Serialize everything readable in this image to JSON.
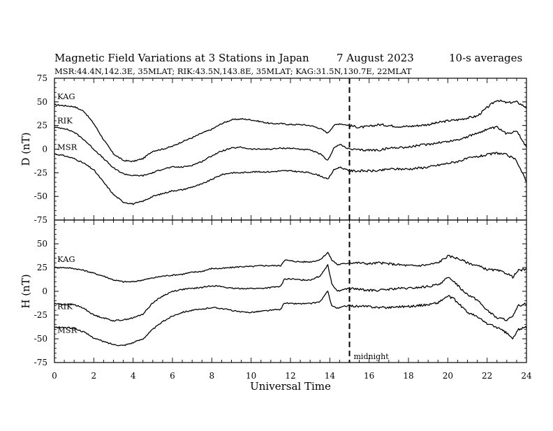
{
  "chart_data": {
    "type": "line",
    "title": "Magnetic Field Variations at 3 Stations in Japan",
    "date": "7   August   2023",
    "averaging": "10-s averages",
    "subtitle": "MSR:44.4N,142.3E, 35MLAT;  RIK:43.5N,143.8E, 35MLAT;  KAG:31.5N,130.7E, 22MLAT",
    "xlabel": "Universal Time",
    "xlim": [
      0,
      24
    ],
    "xticks": [
      "0",
      "2",
      "4",
      "6",
      "8",
      "10",
      "12",
      "14",
      "16",
      "18",
      "20",
      "22",
      "24"
    ],
    "marker": {
      "x": 15,
      "label": "midnight"
    },
    "panels": [
      {
        "ylabel": "D (nT)",
        "ylim": [
          -75,
          75
        ],
        "yticks": [
          "75",
          "50",
          "25",
          "0",
          "-25",
          "-50",
          "-75"
        ],
        "series": [
          {
            "name": "KAG",
            "x": [
              0,
              0.5,
              1,
              1.5,
              2,
              2.5,
              3,
              3.5,
              4,
              4.5,
              5,
              5.5,
              6,
              6.5,
              7,
              7.5,
              8,
              8.5,
              9,
              9.5,
              10,
              10.5,
              11,
              11.5,
              12,
              12.5,
              13,
              13.5,
              13.9,
              14.2,
              14.5,
              15,
              15.5,
              16,
              16.5,
              17,
              17.5,
              18,
              18.5,
              19,
              19.5,
              20,
              20.5,
              21,
              21.5,
              22,
              22.5,
              23,
              23.5,
              24
            ],
            "values": [
              47,
              46,
              45,
              40,
              27,
              10,
              -5,
              -12,
              -13,
              -10,
              -2,
              0,
              3,
              8,
              12,
              17,
              21,
              27,
              31,
              32,
              31,
              29,
              27,
              27,
              26,
              26,
              25,
              22,
              17,
              25,
              27,
              25,
              23,
              24,
              26,
              25,
              24,
              24,
              25,
              26,
              28,
              30,
              31,
              33,
              35,
              44,
              52,
              49,
              50,
              44
            ]
          },
          {
            "name": "RIK",
            "x": [
              0,
              0.5,
              1,
              1.5,
              2,
              2.5,
              3,
              3.5,
              4,
              4.5,
              5,
              5.5,
              6,
              6.5,
              7,
              7.5,
              8,
              8.5,
              9,
              9.5,
              10,
              10.5,
              11,
              11.5,
              12,
              12.5,
              13,
              13.5,
              13.9,
              14.2,
              14.5,
              15,
              15.5,
              16,
              16.5,
              17,
              17.5,
              18,
              18.5,
              19,
              19.5,
              20,
              20.5,
              21,
              21.5,
              22,
              22.5,
              23,
              23.5,
              24
            ],
            "values": [
              23,
              22,
              18,
              10,
              0,
              -10,
              -20,
              -26,
              -28,
              -28,
              -25,
              -21,
              -19,
              -19,
              -17,
              -13,
              -7,
              -2,
              1,
              2,
              0,
              0,
              0,
              1,
              1,
              0,
              -1,
              -5,
              -12,
              1,
              5,
              0,
              -1,
              -1,
              -1,
              1,
              2,
              2,
              4,
              5,
              7,
              8,
              10,
              13,
              17,
              21,
              23,
              16,
              20,
              2
            ]
          },
          {
            "name": "MSR",
            "x": [
              0,
              0.5,
              1,
              1.5,
              2,
              2.5,
              3,
              3.5,
              4,
              4.5,
              5,
              5.5,
              6,
              6.5,
              7,
              7.5,
              8,
              8.5,
              9,
              9.5,
              10,
              10.5,
              11,
              11.5,
              12,
              12.5,
              13,
              13.5,
              13.9,
              14.2,
              14.5,
              15,
              15.5,
              16,
              16.5,
              17,
              17.5,
              18,
              18.5,
              19,
              19.5,
              20,
              20.5,
              21,
              21.5,
              22,
              22.5,
              23,
              23.5,
              24
            ],
            "values": [
              -5,
              -7,
              -10,
              -15,
              -22,
              -35,
              -48,
              -56,
              -58,
              -55,
              -50,
              -47,
              -44,
              -43,
              -40,
              -37,
              -32,
              -27,
              -25,
              -25,
              -24,
              -24,
              -24,
              -23,
              -23,
              -24,
              -25,
              -28,
              -32,
              -22,
              -19,
              -23,
              -23,
              -23,
              -23,
              -21,
              -21,
              -21,
              -20,
              -19,
              -17,
              -15,
              -13,
              -10,
              -8,
              -6,
              -4,
              -6,
              -12,
              -35
            ]
          }
        ]
      },
      {
        "ylabel": "H (nT)",
        "ylim": [
          -75,
          75
        ],
        "yticks": [
          "75",
          "50",
          "25",
          "0",
          "-25",
          "-50",
          "-75"
        ],
        "series": [
          {
            "name": "KAG",
            "x": [
              0,
              0.5,
              1,
              1.5,
              2,
              2.5,
              3,
              3.5,
              4,
              4.5,
              5,
              5.5,
              6,
              6.5,
              7,
              7.5,
              8,
              8.5,
              9,
              9.5,
              10,
              10.5,
              11,
              11.5,
              11.7,
              12,
              12.5,
              13,
              13.5,
              13.9,
              14.1,
              14.4,
              14.7,
              15,
              15.5,
              16,
              16.5,
              17,
              17.5,
              18,
              18.5,
              19,
              19.5,
              20,
              20.3,
              20.7,
              21,
              21.5,
              22,
              22.5,
              23,
              23.3,
              23.6,
              24
            ],
            "values": [
              25,
              25,
              24,
              22,
              19,
              16,
              12,
              10,
              10,
              12,
              14,
              16,
              17,
              18,
              20,
              21,
              24,
              24,
              25,
              26,
              26,
              27,
              27,
              27,
              33,
              32,
              31,
              31,
              33,
              41,
              33,
              28,
              29,
              30,
              30,
              29,
              30,
              29,
              28,
              27,
              27,
              28,
              30,
              37,
              36,
              33,
              30,
              27,
              23,
              22,
              19,
              15,
              22,
              23
            ]
          },
          {
            "name": "RIK",
            "x": [
              0,
              0.5,
              1,
              1.5,
              2,
              2.5,
              3,
              3.5,
              4,
              4.5,
              5,
              5.5,
              6,
              6.5,
              7,
              7.5,
              8,
              8.5,
              9,
              9.5,
              10,
              10.5,
              11,
              11.5,
              11.7,
              12,
              12.5,
              13,
              13.5,
              13.9,
              14.1,
              14.4,
              14.7,
              15,
              15.5,
              16,
              16.5,
              17,
              17.5,
              18,
              18.5,
              19,
              19.5,
              20,
              20.3,
              20.7,
              21,
              21.5,
              22,
              22.5,
              23,
              23.3,
              23.6,
              24
            ],
            "values": [
              -13,
              -14,
              -14,
              -18,
              -25,
              -28,
              -31,
              -30,
              -28,
              -24,
              -12,
              -5,
              0,
              2,
              3,
              4,
              6,
              5,
              3,
              3,
              3,
              3,
              4,
              5,
              13,
              13,
              12,
              12,
              16,
              28,
              8,
              0,
              2,
              3,
              2,
              1,
              1,
              2,
              3,
              3,
              4,
              5,
              7,
              14,
              11,
              2,
              -3,
              -9,
              -20,
              -28,
              -30,
              -27,
              -15,
              -13
            ]
          },
          {
            "name": "MSR",
            "x": [
              0,
              0.5,
              1,
              1.5,
              2,
              2.5,
              3,
              3.5,
              4,
              4.5,
              5,
              5.5,
              6,
              6.5,
              7,
              7.5,
              8,
              8.5,
              9,
              9.5,
              10,
              10.5,
              11,
              11.5,
              11.7,
              12,
              12.5,
              13,
              13.5,
              13.9,
              14.1,
              14.4,
              14.7,
              15,
              15.5,
              16,
              16.5,
              17,
              17.5,
              18,
              18.5,
              19,
              19.5,
              20,
              20.3,
              20.7,
              21,
              21.5,
              22,
              22.5,
              23,
              23.3,
              23.6,
              24
            ],
            "values": [
              -38,
              -38,
              -39,
              -43,
              -49,
              -53,
              -56,
              -57,
              -54,
              -50,
              -40,
              -32,
              -26,
              -22,
              -20,
              -19,
              -17,
              -18,
              -20,
              -22,
              -22,
              -21,
              -20,
              -19,
              -12,
              -13,
              -13,
              -13,
              -11,
              0,
              -15,
              -18,
              -16,
              -15,
              -16,
              -16,
              -17,
              -17,
              -16,
              -16,
              -15,
              -14,
              -12,
              -5,
              -8,
              -16,
              -22,
              -27,
              -34,
              -38,
              -44,
              -50,
              -40,
              -38
            ]
          }
        ]
      }
    ]
  }
}
